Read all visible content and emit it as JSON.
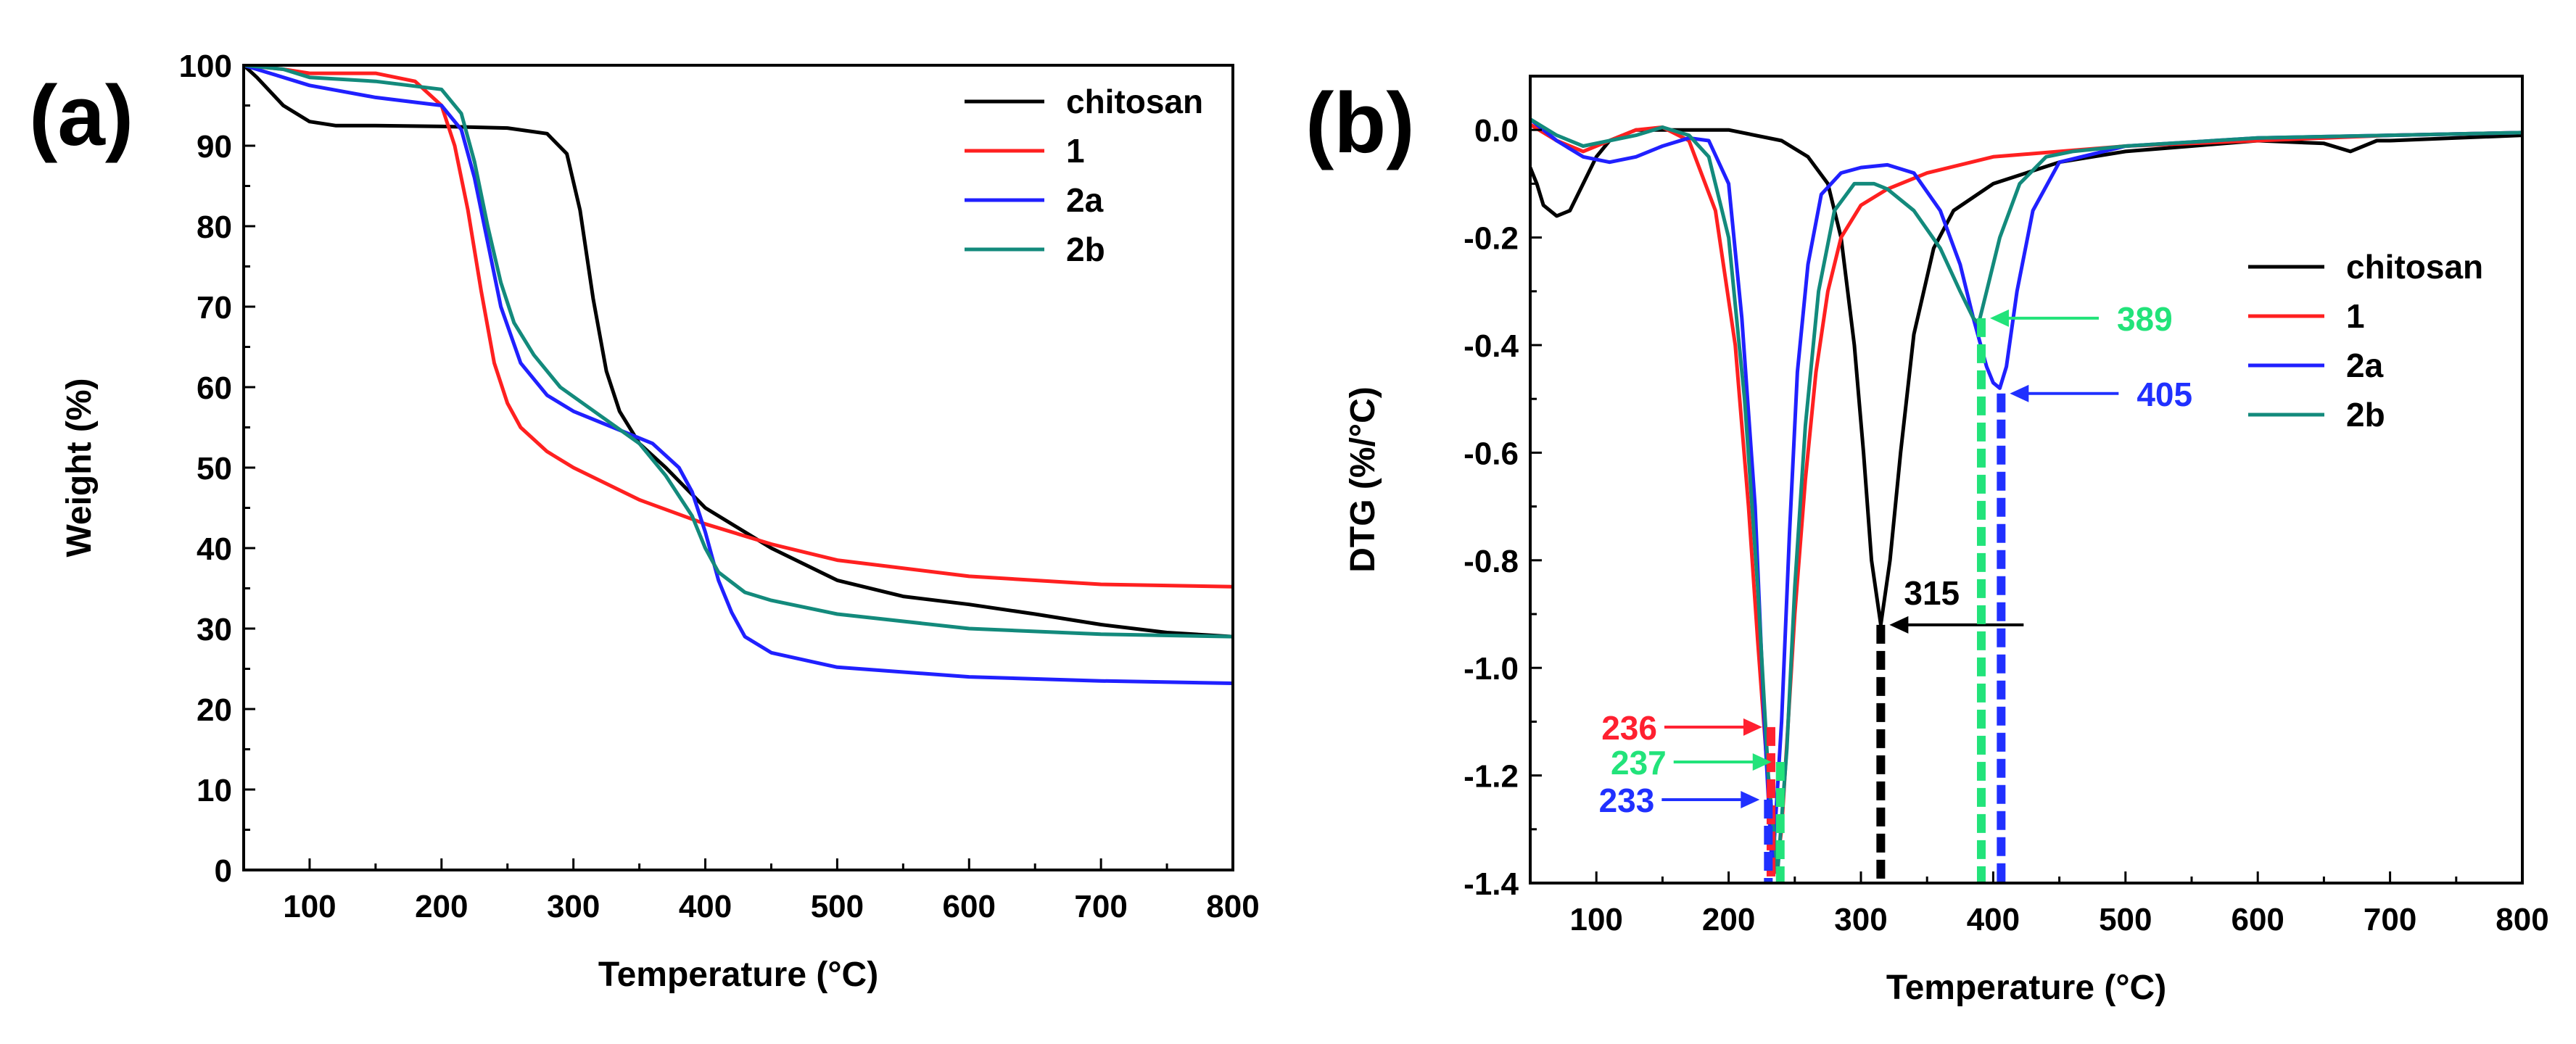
{
  "figure": {
    "title": ""
  },
  "colors": {
    "chitosan": "#000000",
    "s1": "#ff2020",
    "s2a": "#2020ff",
    "s2b": "#138a7c",
    "ann_green": "#22e37a",
    "ann_red": "#ff2030",
    "ann_blue": "#2030ff",
    "ann_black": "#000000"
  },
  "chart_data": [
    {
      "type": "line",
      "panel_label": "(a)",
      "xlabel": "Temperature (°C)",
      "ylabel": "Weight (%)",
      "xlim": [
        50,
        800
      ],
      "ylim": [
        0,
        100
      ],
      "xticks": [
        100,
        200,
        300,
        400,
        500,
        600,
        700,
        800
      ],
      "yticks": [
        0,
        10,
        20,
        30,
        40,
        50,
        60,
        70,
        80,
        90,
        100
      ],
      "legend_position": "top-right",
      "series": [
        {
          "name": "chitosan",
          "color_key": "chitosan",
          "x": [
            50,
            60,
            80,
            100,
            120,
            150,
            200,
            250,
            280,
            295,
            305,
            315,
            325,
            335,
            350,
            370,
            400,
            450,
            500,
            550,
            600,
            650,
            700,
            750,
            800
          ],
          "y": [
            100,
            98.5,
            95,
            93,
            92.5,
            92.5,
            92.4,
            92.2,
            91.5,
            89,
            82,
            71,
            62,
            57,
            53,
            50,
            45,
            40,
            36,
            34,
            33,
            31.8,
            30.5,
            29.5,
            29
          ]
        },
        {
          "name": "1",
          "color_key": "s1",
          "x": [
            50,
            80,
            100,
            150,
            180,
            200,
            210,
            220,
            230,
            240,
            250,
            260,
            280,
            300,
            350,
            400,
            450,
            500,
            600,
            700,
            800
          ],
          "y": [
            100,
            99.5,
            99,
            99,
            98,
            95,
            90,
            82,
            72,
            63,
            58,
            55,
            52,
            50,
            46,
            43,
            40.5,
            38.5,
            36.5,
            35.5,
            35.2
          ]
        },
        {
          "name": "2a",
          "color_key": "s2a",
          "x": [
            50,
            70,
            100,
            150,
            200,
            215,
            225,
            235,
            245,
            260,
            280,
            300,
            330,
            360,
            380,
            390,
            400,
            410,
            420,
            430,
            450,
            500,
            600,
            700,
            800
          ],
          "y": [
            100,
            99,
            97.5,
            96,
            95,
            92,
            86,
            78,
            70,
            63,
            59,
            57,
            55,
            53,
            50,
            47,
            42,
            36,
            32,
            29,
            27,
            25.2,
            24,
            23.5,
            23.2
          ]
        },
        {
          "name": "2b",
          "color_key": "s2b",
          "x": [
            50,
            80,
            100,
            150,
            200,
            215,
            225,
            235,
            245,
            255,
            270,
            290,
            320,
            350,
            370,
            390,
            400,
            410,
            430,
            450,
            500,
            600,
            700,
            800
          ],
          "y": [
            100,
            99.5,
            98.5,
            98,
            97,
            94,
            88,
            80,
            73,
            68,
            64,
            60,
            56.5,
            53,
            49,
            44,
            40,
            37,
            34.5,
            33.5,
            31.8,
            30,
            29.3,
            29
          ]
        }
      ]
    },
    {
      "type": "line",
      "panel_label": "(b)",
      "xlabel": "Temperature (°C)",
      "ylabel": "DTG (%/°C)",
      "xlim": [
        50,
        800
      ],
      "ylim": [
        -1.4,
        0.1
      ],
      "xticks": [
        100,
        200,
        300,
        400,
        500,
        600,
        700,
        800
      ],
      "yticks": [
        0.0,
        -0.2,
        -0.4,
        -0.6,
        -0.8,
        -1.0,
        -1.2,
        -1.4
      ],
      "ytick_labels": [
        "0.0",
        "-0.2",
        "-0.4",
        "-0.6",
        "-0.8",
        "-1.0",
        "-1.2",
        "-1.4"
      ],
      "legend_position": "right",
      "series": [
        {
          "name": "chitosan",
          "color_key": "chitosan",
          "x": [
            50,
            55,
            60,
            70,
            80,
            90,
            100,
            110,
            130,
            150,
            200,
            240,
            260,
            275,
            285,
            295,
            302,
            308,
            315,
            322,
            330,
            340,
            355,
            370,
            400,
            450,
            500,
            550,
            600,
            650,
            670,
            690,
            700,
            750,
            800
          ],
          "y": [
            -0.07,
            -0.1,
            -0.14,
            -0.16,
            -0.15,
            -0.1,
            -0.05,
            -0.02,
            0.0,
            0.0,
            0.0,
            -0.02,
            -0.05,
            -0.1,
            -0.2,
            -0.4,
            -0.6,
            -0.8,
            -0.92,
            -0.8,
            -0.6,
            -0.38,
            -0.22,
            -0.15,
            -0.1,
            -0.06,
            -0.04,
            -0.03,
            -0.02,
            -0.025,
            -0.04,
            -0.02,
            -0.02,
            -0.015,
            -0.01
          ]
        },
        {
          "name": "1",
          "color_key": "s1",
          "x": [
            50,
            70,
            90,
            110,
            130,
            150,
            170,
            190,
            205,
            215,
            222,
            228,
            232,
            236,
            240,
            245,
            250,
            258,
            266,
            275,
            285,
            300,
            320,
            350,
            400,
            450,
            500,
            600,
            700,
            800
          ],
          "y": [
            0.01,
            -0.02,
            -0.04,
            -0.02,
            0.0,
            0.005,
            -0.02,
            -0.15,
            -0.4,
            -0.7,
            -0.95,
            -1.15,
            -1.3,
            -1.38,
            -1.3,
            -1.1,
            -0.9,
            -0.65,
            -0.45,
            -0.3,
            -0.2,
            -0.14,
            -0.11,
            -0.08,
            -0.05,
            -0.04,
            -0.03,
            -0.02,
            -0.01,
            -0.005
          ]
        },
        {
          "name": "2a",
          "color_key": "s2a",
          "x": [
            50,
            70,
            90,
            110,
            130,
            150,
            170,
            185,
            200,
            210,
            220,
            227,
            233,
            240,
            246,
            252,
            260,
            270,
            285,
            300,
            320,
            340,
            360,
            375,
            385,
            395,
            400,
            405,
            410,
            418,
            430,
            450,
            500,
            600,
            700,
            800
          ],
          "y": [
            0.02,
            -0.02,
            -0.05,
            -0.06,
            -0.05,
            -0.03,
            -0.015,
            -0.02,
            -0.1,
            -0.35,
            -0.7,
            -1.1,
            -1.38,
            -1.1,
            -0.75,
            -0.45,
            -0.25,
            -0.12,
            -0.08,
            -0.07,
            -0.065,
            -0.08,
            -0.15,
            -0.25,
            -0.35,
            -0.44,
            -0.47,
            -0.48,
            -0.44,
            -0.3,
            -0.15,
            -0.06,
            -0.03,
            -0.015,
            -0.01,
            -0.005
          ]
        },
        {
          "name": "2b",
          "color_key": "s2b",
          "x": [
            50,
            70,
            90,
            110,
            130,
            150,
            170,
            185,
            200,
            212,
            222,
            230,
            237,
            244,
            250,
            258,
            268,
            280,
            295,
            310,
            320,
            340,
            360,
            375,
            385,
            389,
            395,
            405,
            420,
            440,
            460,
            500,
            600,
            700,
            800
          ],
          "y": [
            0.02,
            -0.01,
            -0.03,
            -0.02,
            -0.01,
            0.005,
            -0.01,
            -0.05,
            -0.2,
            -0.5,
            -0.85,
            -1.2,
            -1.38,
            -1.15,
            -0.85,
            -0.55,
            -0.3,
            -0.15,
            -0.1,
            -0.1,
            -0.11,
            -0.15,
            -0.22,
            -0.3,
            -0.35,
            -0.36,
            -0.3,
            -0.2,
            -0.1,
            -0.05,
            -0.04,
            -0.03,
            -0.015,
            -0.01,
            -0.005
          ]
        }
      ],
      "annotations": [
        {
          "label": "236",
          "color_key": "ann_red",
          "x": 232,
          "y": -1.11,
          "dash_to": -1.4,
          "side": "left"
        },
        {
          "label": "237",
          "color_key": "ann_green",
          "x": 239,
          "y": -1.175,
          "dash_to": -1.4,
          "side": "left"
        },
        {
          "label": "233",
          "color_key": "ann_blue",
          "x": 230,
          "y": -1.245,
          "dash_to": -1.4,
          "side": "left"
        },
        {
          "label": "315",
          "color_key": "ann_black",
          "x": 315,
          "y": -0.92,
          "dash_to": -1.4,
          "side": "right"
        },
        {
          "label": "389",
          "color_key": "ann_green",
          "x": 391,
          "y": -0.35,
          "dash_to": -1.4,
          "side": "right"
        },
        {
          "label": "405",
          "color_key": "ann_blue",
          "x": 406,
          "y": -0.49,
          "dash_to": -1.4,
          "side": "right"
        }
      ]
    }
  ]
}
